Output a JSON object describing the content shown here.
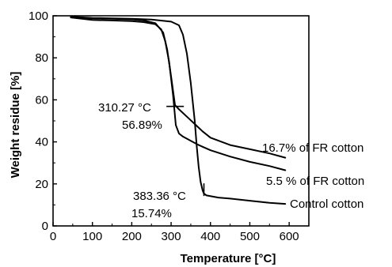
{
  "chart_data": {
    "type": "line",
    "title": "",
    "xlabel": "Temperature [°C]",
    "ylabel": "Weight residue [%]",
    "xlim": [
      0,
      650
    ],
    "ylim": [
      0,
      100
    ],
    "x_ticks": [
      0,
      100,
      200,
      300,
      400,
      500,
      600
    ],
    "y_ticks": [
      0,
      20,
      40,
      60,
      80,
      100
    ],
    "grid": false,
    "legend": "none",
    "line_color": "#000000",
    "series": [
      {
        "label": "16.7% of FR cotton",
        "x": [
          45,
          100,
          150,
          200,
          230,
          260,
          280,
          290,
          300,
          310,
          320,
          340,
          360,
          380,
          400,
          450,
          500,
          550,
          590
        ],
        "y": [
          99.6,
          98.8,
          98.6,
          98.3,
          97.8,
          96.5,
          92,
          84,
          71,
          57.5,
          55.5,
          52,
          48.5,
          45,
          42,
          38.5,
          36.5,
          34.5,
          32.5
        ]
      },
      {
        "label": "5.5 % of FR cotton",
        "x": [
          45,
          100,
          150,
          200,
          230,
          260,
          275,
          285,
          295,
          305,
          312,
          320,
          330,
          350,
          370,
          400,
          450,
          500,
          550,
          590
        ],
        "y": [
          99.2,
          98,
          97.8,
          97.5,
          97,
          96,
          93.5,
          88,
          78,
          62,
          48,
          44,
          42.5,
          40.5,
          38.5,
          36,
          33,
          30.5,
          28.5,
          26.5
        ]
      },
      {
        "label": "Control cotton",
        "x": [
          45,
          100,
          150,
          200,
          250,
          300,
          320,
          330,
          340,
          350,
          360,
          365,
          370,
          375,
          380,
          383,
          390,
          420,
          450,
          500,
          550,
          590
        ],
        "y": [
          99.5,
          99,
          98.8,
          98.6,
          98.2,
          97.2,
          95.5,
          91,
          82,
          68,
          50,
          38,
          28,
          21,
          17,
          15.5,
          14.5,
          13.5,
          13,
          12,
          11,
          10.5
        ]
      }
    ],
    "annotations": [
      {
        "text": "310.27 °C",
        "value": "56.89%",
        "x": 310.27,
        "y": 56.89
      },
      {
        "text": "383.36 °C",
        "value": "15.74%",
        "x": 383.36,
        "y": 15.74
      }
    ]
  }
}
